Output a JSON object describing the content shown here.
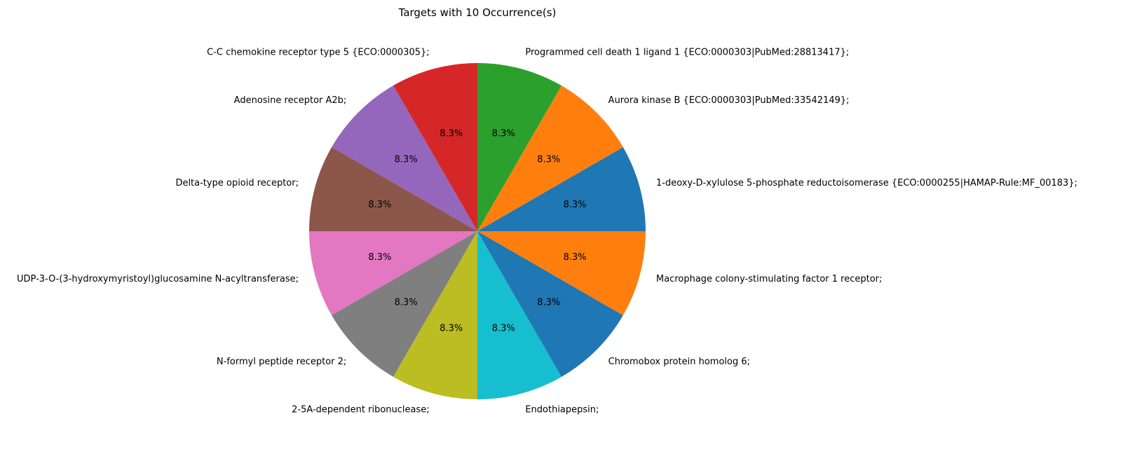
{
  "chart_data": {
    "type": "pie",
    "title": "Targets with 10 Occurrence(s)",
    "slices": [
      {
        "label": "1-deoxy-D-xylulose 5-phosphate reductoisomerase {ECO:0000255|HAMAP-Rule:MF_00183};",
        "value": 10,
        "percent_label": "8.3%",
        "color": "#1f77b4"
      },
      {
        "label": "Aurora kinase B {ECO:0000303|PubMed:33542149};",
        "value": 10,
        "percent_label": "8.3%",
        "color": "#ff7f0e"
      },
      {
        "label": "Programmed cell death 1 ligand 1 {ECO:0000303|PubMed:28813417};",
        "value": 10,
        "percent_label": "8.3%",
        "color": "#2ca02c"
      },
      {
        "label": "C-C chemokine receptor type 5 {ECO:0000305};",
        "value": 10,
        "percent_label": "8.3%",
        "color": "#d62728"
      },
      {
        "label": "Adenosine receptor A2b;",
        "value": 10,
        "percent_label": "8.3%",
        "color": "#9467bd"
      },
      {
        "label": "Delta-type opioid receptor;",
        "value": 10,
        "percent_label": "8.3%",
        "color": "#8c564b"
      },
      {
        "label": "UDP-3-O-(3-hydroxymyristoyl)glucosamine N-acyltransferase;",
        "value": 10,
        "percent_label": "8.3%",
        "color": "#e377c2"
      },
      {
        "label": "N-formyl peptide receptor 2;",
        "value": 10,
        "percent_label": "8.3%",
        "color": "#7f7f7f"
      },
      {
        "label": "2-5A-dependent ribonuclease;",
        "value": 10,
        "percent_label": "8.3%",
        "color": "#bcbd22"
      },
      {
        "label": "Endothiapepsin;",
        "value": 10,
        "percent_label": "8.3%",
        "color": "#17becf"
      },
      {
        "label": "Chromobox protein homolog 6;",
        "value": 10,
        "percent_label": "8.3%",
        "color": "#1f77b4"
      },
      {
        "label": "Macrophage colony-stimulating factor 1 receptor;",
        "value": 10,
        "percent_label": "8.3%",
        "color": "#ff7f0e"
      }
    ],
    "start_angle_deg": 0,
    "direction": "counterclockwise"
  }
}
